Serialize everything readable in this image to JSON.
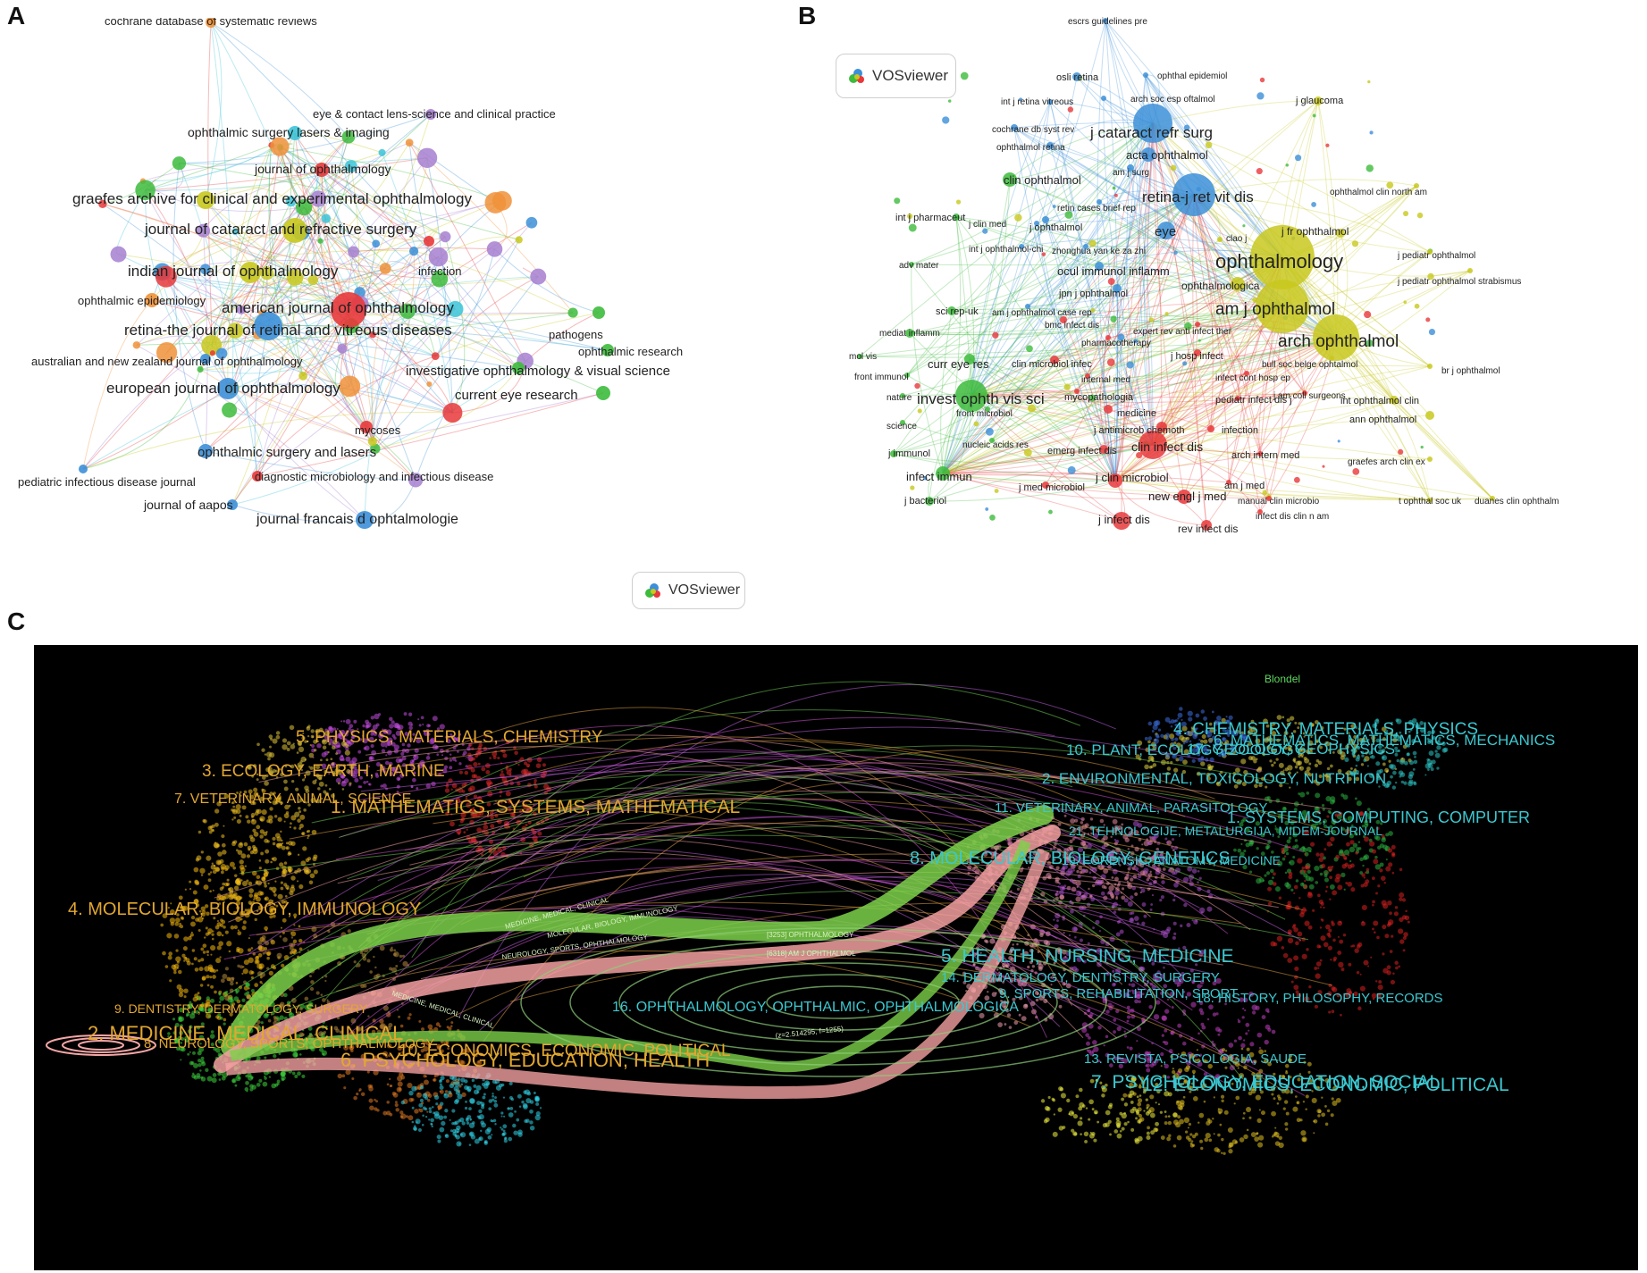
{
  "panels": {
    "a": "A",
    "b": "B",
    "c": "C"
  },
  "vosviewer_label": "VOSviewer",
  "colors": {
    "red": "#e8383b",
    "green": "#3dbb3c",
    "blue": "#3c8fd8",
    "yellow": "#c8c81e",
    "purple": "#a67fd0",
    "cyan": "#3bc4d8",
    "orange": "#f0923a",
    "c_bg": "#000000",
    "c_left_label": "#e3a72f",
    "c_right_label": "#3bc8d0",
    "c_flow_green": "#7cd14a",
    "c_flow_pink": "#f3a0a0",
    "c_blondel": "#5fd85f"
  },
  "panel_a": {
    "nodes": [
      {
        "label": "cochrane database of systematic reviews",
        "color": "orange"
      },
      {
        "label": "eye & contact lens-science and clinical practice",
        "color": "purple"
      },
      {
        "label": "ophthalmic surgery lasers & imaging",
        "color": "cyan"
      },
      {
        "label": "journal of ophthalmology",
        "color": "red"
      },
      {
        "label": "graefes archive for clinical and experimental ophthalmology",
        "color": "yellow"
      },
      {
        "label": "journal of cataract and refractive surgery",
        "color": "yellow"
      },
      {
        "label": "indian journal of ophthalmology",
        "color": "yellow"
      },
      {
        "label": "infection",
        "color": "red"
      },
      {
        "label": "ophthalmic epidemiology",
        "color": "orange"
      },
      {
        "label": "american journal of ophthalmology",
        "color": "red"
      },
      {
        "label": "retina-the journal of retinal and vitreous diseases",
        "color": "blue"
      },
      {
        "label": "pathogens",
        "color": "green"
      },
      {
        "label": "ophthalmic research",
        "color": "green"
      },
      {
        "label": "australian and new zealand journal of ophthalmology",
        "color": "blue"
      },
      {
        "label": "investigative ophthalmology & visual science",
        "color": "green"
      },
      {
        "label": "current eye research",
        "color": "green"
      },
      {
        "label": "european journal of ophthalmology",
        "color": "blue"
      },
      {
        "label": "mycoses",
        "color": "red"
      },
      {
        "label": "ophthalmic surgery and lasers",
        "color": "blue"
      },
      {
        "label": "diagnostic microbiology and infectious disease",
        "color": "red"
      },
      {
        "label": "pediatric infectious disease journal",
        "color": "blue"
      },
      {
        "label": "journal of aapos",
        "color": "blue"
      },
      {
        "label": "journal francais d ophtalmologie",
        "color": "blue"
      }
    ]
  },
  "panel_b": {
    "nodes": [
      {
        "label": "escrs guidelines pre",
        "color": "blue"
      },
      {
        "label": "osli retina",
        "color": "blue"
      },
      {
        "label": "ophthal epidemiol",
        "color": "blue"
      },
      {
        "label": "int j retina vitreous",
        "color": "blue"
      },
      {
        "label": "arch soc esp oftalmol",
        "color": "blue"
      },
      {
        "label": "j glaucoma",
        "color": "yellow"
      },
      {
        "label": "cochrane db syst rev",
        "color": "blue"
      },
      {
        "label": "j cataract refr surg",
        "color": "blue"
      },
      {
        "label": "ophthalmol retina",
        "color": "blue"
      },
      {
        "label": "acta ophthalmol",
        "color": "blue"
      },
      {
        "label": "am j surg",
        "color": "blue"
      },
      {
        "label": "clin ophthalmol",
        "color": "green"
      },
      {
        "label": "retina-j ret vit dis",
        "color": "blue"
      },
      {
        "label": "ophthalmol clin north am",
        "color": "yellow"
      },
      {
        "label": "retin cases brief rep",
        "color": "blue"
      },
      {
        "label": "int j pharmaceut",
        "color": "green"
      },
      {
        "label": "j clin med",
        "color": "blue"
      },
      {
        "label": "j ophthalmol",
        "color": "blue"
      },
      {
        "label": "eye",
        "color": "blue"
      },
      {
        "label": "clao j",
        "color": "yellow"
      },
      {
        "label": "j fr ophthalmol",
        "color": "yellow"
      },
      {
        "label": "int j ophthalmol-chi",
        "color": "blue"
      },
      {
        "label": "zhonghua yan ke za zhi",
        "color": "blue"
      },
      {
        "label": "ophthalmology",
        "color": "yellow"
      },
      {
        "label": "j pediatr ophthalmol",
        "color": "yellow"
      },
      {
        "label": "adv mater",
        "color": "green"
      },
      {
        "label": "ocul immunol inflamm",
        "color": "blue"
      },
      {
        "label": "j pediatr ophthalmol strabismus",
        "color": "yellow"
      },
      {
        "label": "ophthalmologica",
        "color": "yellow"
      },
      {
        "label": "jpn j ophthalmol",
        "color": "blue"
      },
      {
        "label": "am j ophthalmol",
        "color": "yellow"
      },
      {
        "label": "sci rep-uk",
        "color": "green"
      },
      {
        "label": "am j ophthalmol case rep",
        "color": "blue"
      },
      {
        "label": "bmc infect dis",
        "color": "red"
      },
      {
        "label": "expert rev anti infect ther",
        "color": "red"
      },
      {
        "label": "mediat inflamm",
        "color": "green"
      },
      {
        "label": "pharmacotherapy",
        "color": "red"
      },
      {
        "label": "arch ophthalmol",
        "color": "yellow"
      },
      {
        "label": "mol vis",
        "color": "green"
      },
      {
        "label": "curr eye res",
        "color": "green"
      },
      {
        "label": "clin microbiol infec",
        "color": "red"
      },
      {
        "label": "j hosp infect",
        "color": "red"
      },
      {
        "label": "bull soc belge ophtalmol",
        "color": "yellow"
      },
      {
        "label": "br j ophthalmol",
        "color": "yellow"
      },
      {
        "label": "front immunol",
        "color": "green"
      },
      {
        "label": "internal med",
        "color": "red"
      },
      {
        "label": "infect cont hosp ep",
        "color": "red"
      },
      {
        "label": "invest ophth vis sci",
        "color": "green"
      },
      {
        "label": "mycopathologia",
        "color": "red"
      },
      {
        "label": "j am coll surgeons",
        "color": "red"
      },
      {
        "label": "nature",
        "color": "green"
      },
      {
        "label": "pediatr infect dis j",
        "color": "red"
      },
      {
        "label": "int ophthalmol clin",
        "color": "yellow"
      },
      {
        "label": "front microbiol",
        "color": "green"
      },
      {
        "label": "medicine",
        "color": "red"
      },
      {
        "label": "ann ophthalmol",
        "color": "yellow"
      },
      {
        "label": "science",
        "color": "green"
      },
      {
        "label": "j antimicrob chemoth",
        "color": "red"
      },
      {
        "label": "infection",
        "color": "red"
      },
      {
        "label": "clin infect dis",
        "color": "red"
      },
      {
        "label": "nucleic acids res",
        "color": "green"
      },
      {
        "label": "j immunol",
        "color": "green"
      },
      {
        "label": "emerg infect dis",
        "color": "red"
      },
      {
        "label": "arch intern med",
        "color": "red"
      },
      {
        "label": "graefes arch clin ex",
        "color": "yellow"
      },
      {
        "label": "infect immun",
        "color": "green"
      },
      {
        "label": "j clin microbiol",
        "color": "red"
      },
      {
        "label": "j med microbiol",
        "color": "red"
      },
      {
        "label": "am j med",
        "color": "red"
      },
      {
        "label": "j bacteriol",
        "color": "green"
      },
      {
        "label": "new engl j med",
        "color": "red"
      },
      {
        "label": "manual clin microbio",
        "color": "red"
      },
      {
        "label": "t ophthal soc uk",
        "color": "yellow"
      },
      {
        "label": "duanes clin ophthalm",
        "color": "yellow"
      },
      {
        "label": "infect dis clin n am",
        "color": "red"
      },
      {
        "label": "j infect dis",
        "color": "red"
      },
      {
        "label": "rev infect dis",
        "color": "red"
      }
    ]
  },
  "panel_c": {
    "legend_label": "Blondel",
    "left_labels": [
      "5. PHYSICS, MATERIALS, CHEMISTRY",
      "3. ECOLOGY, EARTH, MARINE",
      "7. VETERINARY, ANIMAL, SCIENCE",
      "1. MATHEMATICS, SYSTEMS, MATHEMATICAL",
      "4. MOLECULAR, BIOLOGY, IMMUNOLOGY",
      "9. DENTISTRY, DERMATOLOGY, SURGERY",
      "2. MEDICINE, MEDICAL, CLINICAL",
      "8. NEUROLOGY, SPORTS, OPHTHALMOLOGY",
      "10. ECONOMICS, ECONOMIC, POLITICAL",
      "6. PSYCHOLOGY, EDUCATION, HEALTH"
    ],
    "right_labels": [
      "4. CHEMISTRY, MATERIALS, PHYSICS",
      "6. MATHEMATICS, MATHEMATICS, MECHANICS",
      "10. PLANT, ECOLOGY, ZOOLOGY",
      "17. GEOLOGY, GEOPHYSICS",
      "2. ENVIRONMENTAL, TOXICOLOGY, NUTRITION",
      "11. VETERINARY, ANIMAL, PARASITOLOGY",
      "1. SYSTEMS, COMPUTING, COMPUTER",
      "21. TEHNOLOGIJE, METALURGIJA, MIDEM-JOURNAL",
      "8. MOLECULAR, BIOLOGY, GENETICS",
      "19. FORENSIC, ANATOMY, MEDICINE",
      "5. HEALTH, NURSING, MEDICINE",
      "14. DERMATOLOGY, DENTISTRY, SURGERY",
      "9. SPORTS, REHABILITATION, SPORT",
      "18. HISTORY, PHILOSOPHY, RECORDS",
      "16. OPHTHALMOLOGY, OPHTHALMIC, OPHTHALMOLOGICA",
      "13. REVISTA, PSICOLOGIA, SAUDE",
      "7. PSYCHOLOGY, EDUCATION, SOCIAL",
      "12. ECONOMICS, ECONOMIC, POLITICAL"
    ],
    "flow_labels": [
      "MEDICINE, MEDICAL, CLINICAL",
      "MOLECULAR, BIOLOGY, IMMUNOLOGY",
      "[3253] OPHTHALMOLOGY",
      "[6318] AM J OPHTHALMOL",
      "NEUROLOGY, SPORTS, OPHTHALMOLOGY",
      "MEDICINE, MEDICAL, CLINICAL",
      "(z=2.514295, f=1255)"
    ]
  }
}
